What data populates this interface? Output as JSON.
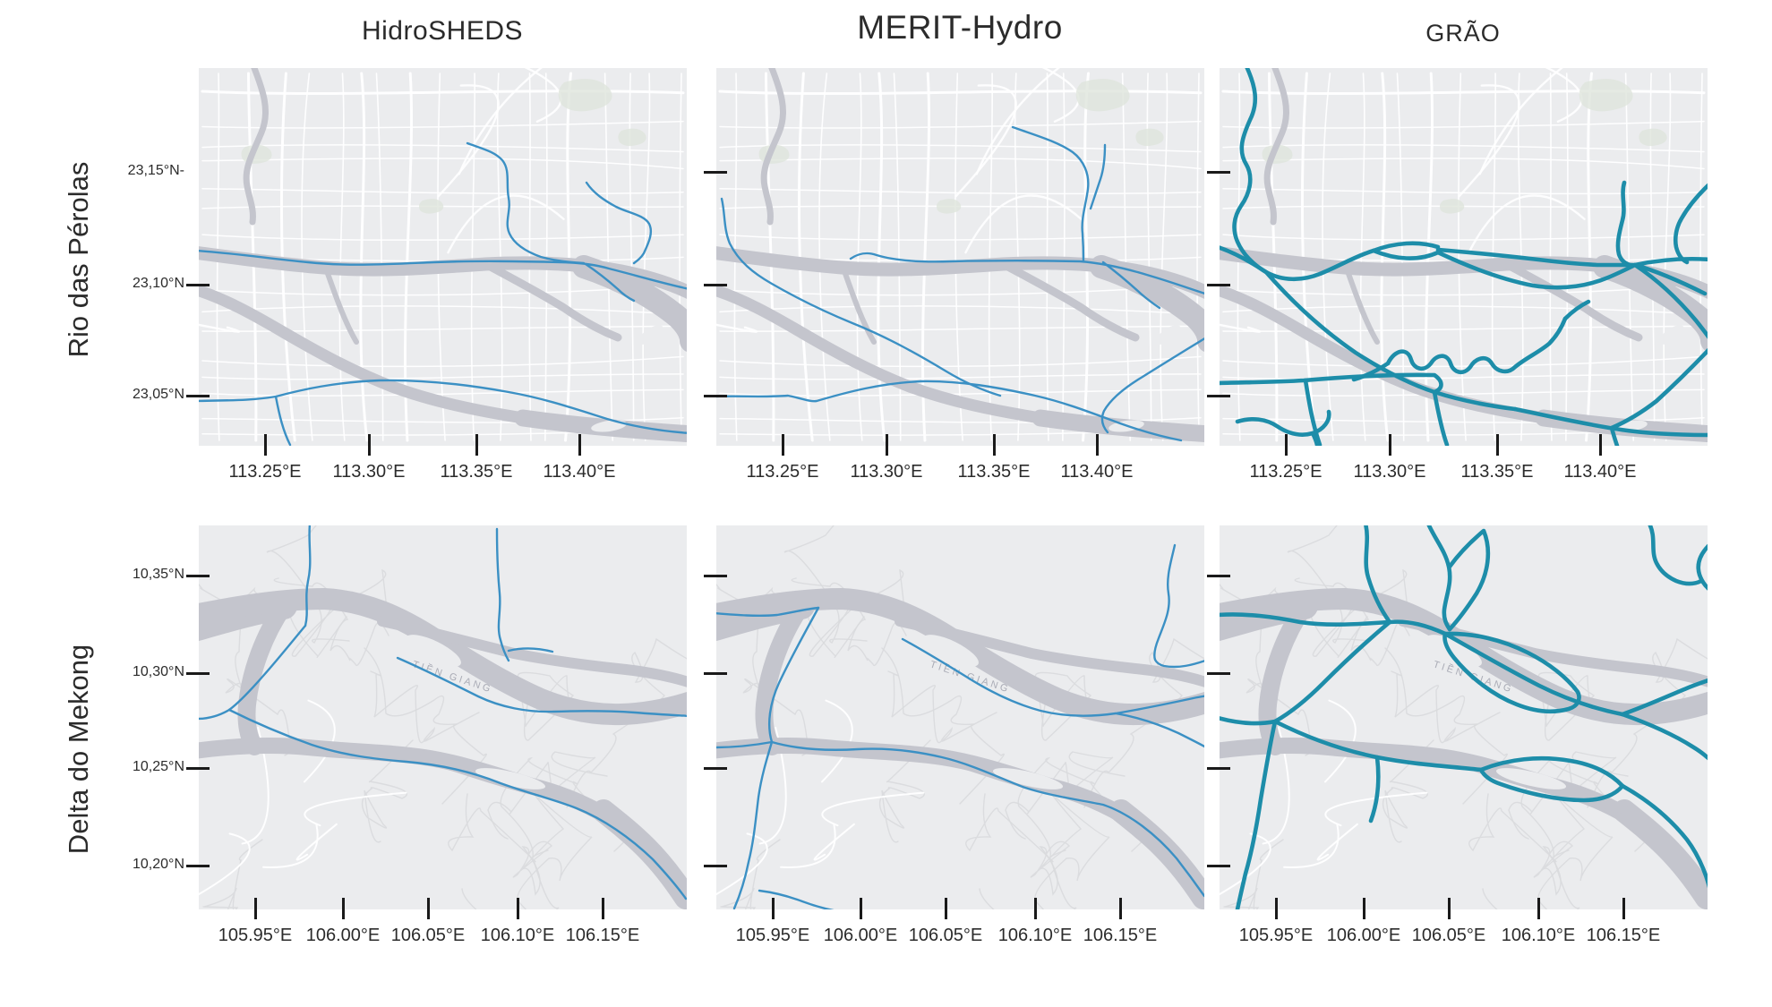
{
  "columns": [
    {
      "title": "HidroSHEDS"
    },
    {
      "title": "MERIT-Hydro"
    },
    {
      "title": "GRÃO"
    }
  ],
  "rows": [
    {
      "label": "Rio das Pérolas",
      "lat_ticks": [
        "23,15°N-",
        "23,10°N",
        "23,05°N"
      ],
      "lon_ticks": [
        "113.25°E",
        "113.30°E",
        "113.35°E",
        "113.40°E"
      ]
    },
    {
      "label": "Delta do Mekong",
      "lat_ticks": [
        "10,35°N",
        "10,30°N",
        "10,25°N",
        "10,20°N"
      ],
      "lon_ticks": [
        "105.95°E",
        "106.00°E",
        "106.05°E",
        "106.10°E",
        "106.15°E"
      ]
    }
  ],
  "map": {
    "channel_label": "TIỀN GIANG"
  },
  "colors": {
    "map_bg": "#ebecee",
    "road_white": "#ffffff",
    "road_gray": "#d9dadd",
    "channel": "#c4c5cd",
    "green_patch": "#dfe5dc",
    "river_thin": "#3b90c4",
    "river_thick": "#1d8da9",
    "tick": "#1a1a1a",
    "text": "#2b2b2b",
    "channel_label": "#aaacb6"
  }
}
